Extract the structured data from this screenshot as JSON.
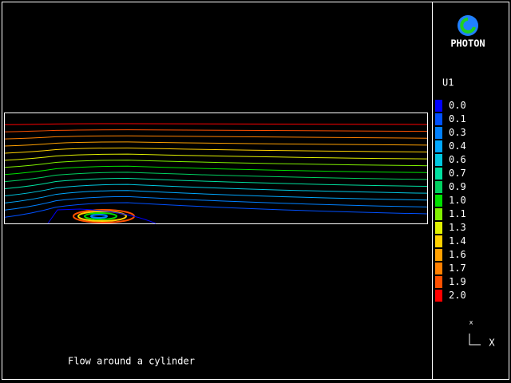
{
  "logo": {
    "text": "PHOTON"
  },
  "legend": {
    "title": "U1",
    "levels": [
      {
        "label": "0.0",
        "color": "#0000ff"
      },
      {
        "label": "0.1",
        "color": "#0050ff"
      },
      {
        "label": "0.3",
        "color": "#0080ff"
      },
      {
        "label": "0.4",
        "color": "#00a8ff"
      },
      {
        "label": "0.6",
        "color": "#00c8e0"
      },
      {
        "label": "0.7",
        "color": "#00e0a0"
      },
      {
        "label": "0.9",
        "color": "#00d060"
      },
      {
        "label": "1.0",
        "color": "#00e000"
      },
      {
        "label": "1.1",
        "color": "#80f000"
      },
      {
        "label": "1.3",
        "color": "#e0f000"
      },
      {
        "label": "1.4",
        "color": "#ffd000"
      },
      {
        "label": "1.6",
        "color": "#ffa000"
      },
      {
        "label": "1.7",
        "color": "#ff8000"
      },
      {
        "label": "1.9",
        "color": "#ff5000"
      },
      {
        "label": "2.0",
        "color": "#ff0000"
      }
    ]
  },
  "axes": {
    "up": "x",
    "right": "X"
  },
  "caption": "Flow around a cylinder"
}
